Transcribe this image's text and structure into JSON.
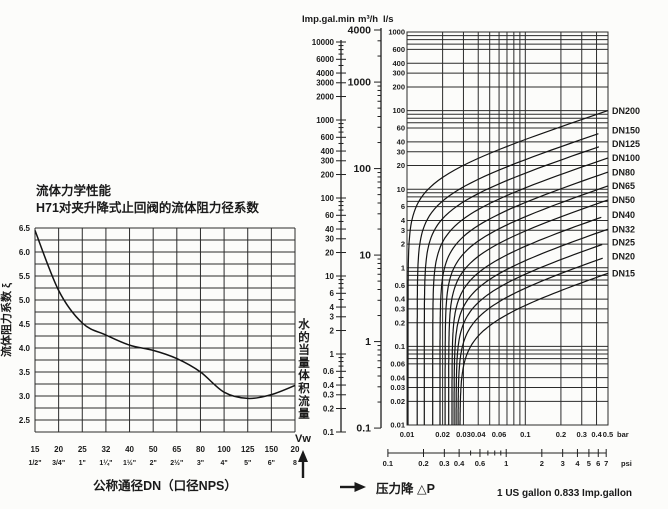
{
  "page": {
    "background": "#fcfcfa",
    "ink": "#1a1a1a"
  },
  "left_chart": {
    "title_line1": "流体力学性能",
    "title_line2": "H71对夹升降式止回阀的流体阻力径系数",
    "y_axis_label": "流体阻力系数 ξ",
    "x_axis_label": "公称通径DN（口径NPS）"
  },
  "right_chart": {
    "header_imp": "Imp.gal.min",
    "header_m3h": "m³/h",
    "header_ls": "l/s",
    "flow_axis_label": "水的当量体积流量",
    "flow_axis_symbol": "Vw",
    "pressure_axis_label": "压力降 △P",
    "bar_unit": "bar",
    "psi_unit": "psi",
    "note": "1 US gallon 0.833 Imp.gallon"
  },
  "chart_data": [
    {
      "id": "resistance-coefficient",
      "type": "line",
      "title": "H71对夹升降式止回阀的流体阻力径系数",
      "xlabel": "公称通径DN（口径NPS）",
      "ylabel": "流体阻力系数 ξ",
      "x_ticks_dn": [
        "15",
        "20",
        "25",
        "32",
        "40",
        "50",
        "65",
        "80",
        "100",
        "125",
        "150",
        "20"
      ],
      "x_ticks_nps": [
        "1/2\"",
        "3/4\"",
        "1\"",
        "1¼\"",
        "1½\"",
        "2\"",
        "2½\"",
        "3\"",
        "4\"",
        "5\"",
        "6\"",
        "8"
      ],
      "values": [
        6.45,
        5.2,
        4.52,
        4.27,
        4.06,
        3.95,
        3.78,
        3.5,
        3.08,
        2.95,
        3.03,
        3.22
      ],
      "ylim": [
        2.25,
        6.5
      ],
      "y_gridline_step": 0.25,
      "y_tick_labels": [
        "6.5",
        "6.0",
        "5.5",
        "5.0",
        "4.5",
        "4.0",
        "3.5",
        "3.0",
        "2.5"
      ],
      "grid": true,
      "legend": "none"
    },
    {
      "id": "flow-vs-pressure-drop",
      "type": "line",
      "scale": "log-log",
      "xlabel": "压力降 △P (bar / psi)",
      "ylabel": "水的当量体积流量 Vw (l/s, m³/h, Imp.gal.min)",
      "x_range_bar": [
        0.01,
        0.5
      ],
      "y_range_ls": [
        0.01,
        1000
      ],
      "x_gridlines_bar": [
        0.01,
        0.02,
        0.03,
        0.04,
        0.05,
        0.06,
        0.07,
        0.08,
        0.09,
        0.1,
        0.2,
        0.3,
        0.4,
        0.5
      ],
      "x_tick_labels_bar": [
        "0.01",
        "0.02",
        "0.03",
        "0.04",
        "0.06",
        "0.1",
        "0.2",
        "0.3",
        "0.4",
        "0.5"
      ],
      "y_grid_decades": [
        1000,
        100,
        10,
        1,
        0.1
      ],
      "y_grid_multipliers": [
        1,
        0.9,
        0.8,
        0.7,
        0.6,
        0.4,
        0.3,
        0.2
      ],
      "y_tick_labels": [
        "1000",
        "600",
        "400",
        "300",
        "200",
        "100",
        "60",
        "40",
        "30",
        "20",
        "10",
        "6",
        "4",
        "3",
        "2",
        "1",
        "0.6",
        "0.4",
        "0.3",
        "0.2",
        "0.1",
        "0.06",
        "0.04",
        "0.03",
        "0.02",
        "0.01"
      ],
      "imp_gal_min_scale_labels": [
        "10000",
        "6000",
        "4000",
        "3000",
        "2000",
        "1000",
        "600",
        "400",
        "300",
        "200",
        "100",
        "60",
        "40",
        "30",
        "20",
        "10",
        "6",
        "4",
        "3",
        "2",
        "1",
        "0.6",
        "0.4",
        "0.3",
        "0.2",
        "0.1"
      ],
      "m3h_scale_labels": [
        "4000",
        "1000",
        "100",
        "10",
        "1",
        "0.1"
      ],
      "psi_tick_labels": [
        "0.1",
        "0.2",
        "0.3",
        "0.4",
        "0.6",
        "1",
        "2",
        "3",
        "4",
        "5",
        "6",
        "7"
      ],
      "psi_minor_ticks": [
        0.5,
        0.7,
        0.8,
        0.9
      ],
      "series": [
        {
          "name": "DN200",
          "q_ls_at_0p5bar": 100,
          "cracking_bar": 0.0102
        },
        {
          "name": "DN150",
          "q_ls_at_0p5bar": 56,
          "cracking_bar": 0.0122
        },
        {
          "name": "DN125",
          "q_ls_at_0p5bar": 38,
          "cracking_bar": 0.014
        },
        {
          "name": "DN100",
          "q_ls_at_0p5bar": 25,
          "cracking_bar": 0.0165
        },
        {
          "name": "DN80",
          "q_ls_at_0p5bar": 16.5,
          "cracking_bar": 0.019
        },
        {
          "name": "DN65",
          "q_ls_at_0p5bar": 11,
          "cracking_bar": 0.021
        },
        {
          "name": "DN50",
          "q_ls_at_0p5bar": 7.3,
          "cracking_bar": 0.0225
        },
        {
          "name": "DN40",
          "q_ls_at_0p5bar": 4.7,
          "cracking_bar": 0.024
        },
        {
          "name": "DN32",
          "q_ls_at_0p5bar": 3.1,
          "cracking_bar": 0.025
        },
        {
          "name": "DN25",
          "q_ls_at_0p5bar": 2.1,
          "cracking_bar": 0.026
        },
        {
          "name": "DN20",
          "q_ls_at_0p5bar": 1.4,
          "cracking_bar": 0.027
        },
        {
          "name": "DN15",
          "q_ls_at_0p5bar": 0.85,
          "cracking_bar": 0.028
        }
      ],
      "note": "1 US gallon 0.833 Imp.gallon"
    }
  ]
}
